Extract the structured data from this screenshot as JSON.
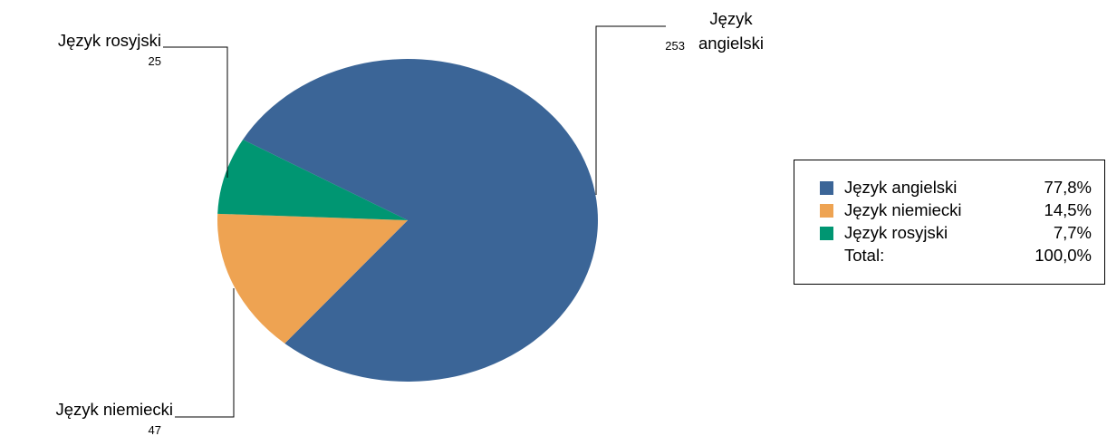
{
  "chart_data": {
    "type": "pie",
    "categories": [
      "Język angielski",
      "Język niemiecki",
      "Język rosyjski"
    ],
    "values": [
      253,
      47,
      25
    ],
    "percent_labels": [
      "77,8%",
      "14,5%",
      "7,7%"
    ],
    "colors": [
      "#3b6597",
      "#eea352",
      "#009672"
    ],
    "callouts": [
      {
        "label_line1": "Język",
        "label_line2": "angielski",
        "value": "253"
      },
      {
        "label": "Język niemiecki",
        "value": "47"
      },
      {
        "label": "Język rosyjski",
        "value": "25"
      }
    ],
    "legend": {
      "placement": "right",
      "total_label": "Total:",
      "total_value": "100,0%"
    }
  }
}
